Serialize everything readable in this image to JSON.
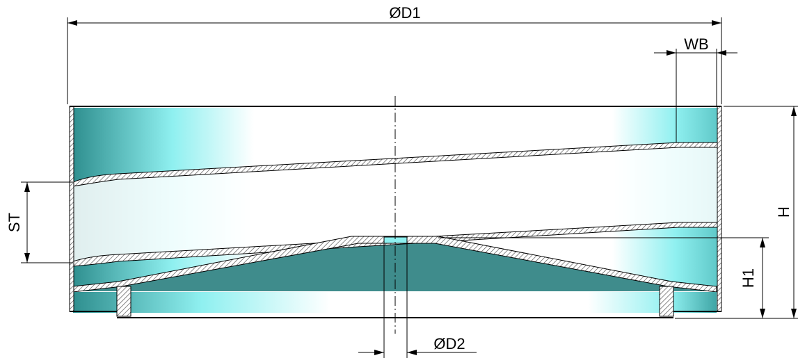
{
  "dimensions": [
    {
      "label": "ØD1"
    },
    {
      "label": "WB"
    },
    {
      "label": "H"
    },
    {
      "label": "H1"
    },
    {
      "label": "ST"
    },
    {
      "label": "ØD2"
    }
  ]
}
